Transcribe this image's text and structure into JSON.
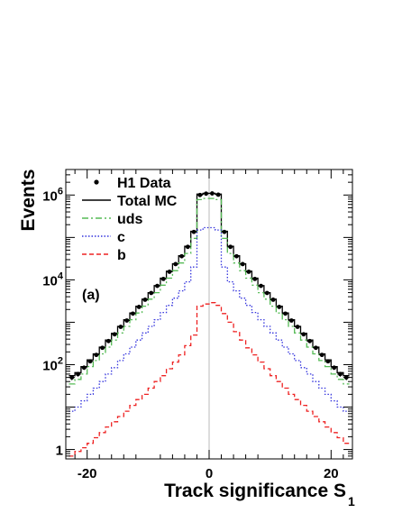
{
  "chart_data": {
    "type": "step-histogram",
    "xlabel": "Track significance S",
    "xlabel_subscript": "1",
    "ylabel": "Events",
    "yscale": "log",
    "xlim": [
      -23.5,
      23.5
    ],
    "ylim": [
      0.6,
      4000000
    ],
    "annotation": "(a)",
    "legend_placement": "top-left",
    "x_ticks": [
      {
        "value": -20,
        "label": "-20"
      },
      {
        "value": 0,
        "label": "0"
      },
      {
        "value": 20,
        "label": "20"
      }
    ],
    "y_ticks": [
      {
        "value": 1,
        "base": "1",
        "exp": ""
      },
      {
        "value": 100,
        "base": "10",
        "exp": "2"
      },
      {
        "value": 10000,
        "base": "10",
        "exp": "4"
      },
      {
        "value": 1000000,
        "base": "10",
        "exp": "6"
      }
    ],
    "bin_edges": [
      -23,
      -22,
      -21,
      -20,
      -19,
      -18,
      -17,
      -16,
      -15,
      -14,
      -13,
      -12,
      -11,
      -10,
      -9,
      -8,
      -7,
      -6,
      -5,
      -4,
      -3,
      -2,
      -1,
      0,
      1,
      2,
      3,
      4,
      5,
      6,
      7,
      8,
      9,
      10,
      11,
      12,
      13,
      14,
      15,
      16,
      17,
      18,
      19,
      20,
      21,
      22,
      23
    ],
    "series": [
      {
        "name": "Total MC",
        "style": "solid",
        "color": "#000000",
        "values": [
          55,
          65,
          90,
          130,
          180,
          260,
          380,
          550,
          800,
          1150,
          1650,
          2400,
          3500,
          5000,
          7300,
          11000,
          16000,
          24000,
          37000,
          62000,
          140000,
          1050000,
          1100000,
          1100000,
          1050000,
          140000,
          62000,
          37000,
          24000,
          16000,
          11000,
          7300,
          5000,
          3500,
          2400,
          1650,
          1150,
          800,
          550,
          380,
          260,
          180,
          130,
          90,
          65,
          55
        ]
      },
      {
        "name": "uds",
        "style": "dashdot",
        "color": "#55bb55",
        "values": [
          35,
          45,
          60,
          90,
          125,
          180,
          260,
          380,
          560,
          800,
          1150,
          1650,
          2400,
          3500,
          5000,
          7500,
          11000,
          16500,
          25000,
          42000,
          95000,
          780000,
          830000,
          830000,
          780000,
          95000,
          42000,
          25000,
          16500,
          11000,
          7500,
          5000,
          3500,
          2400,
          1650,
          1150,
          800,
          560,
          380,
          260,
          180,
          125,
          90,
          60,
          45,
          35
        ]
      },
      {
        "name": "c",
        "style": "dotted",
        "color": "#3333dd",
        "values": [
          8,
          10,
          14,
          20,
          28,
          40,
          60,
          85,
          125,
          180,
          260,
          380,
          560,
          800,
          1150,
          1700,
          2500,
          3700,
          5500,
          9000,
          20000,
          150000,
          170000,
          170000,
          150000,
          20000,
          9000,
          5500,
          3700,
          2500,
          1700,
          1150,
          800,
          560,
          380,
          260,
          180,
          125,
          85,
          60,
          40,
          28,
          20,
          14,
          10,
          8
        ]
      },
      {
        "name": "b",
        "style": "dashed",
        "color": "#ee2222",
        "values": [
          0.7,
          0.9,
          1.1,
          1.4,
          1.9,
          2.5,
          3.4,
          4.5,
          6,
          8,
          11,
          15,
          20,
          28,
          40,
          55,
          80,
          115,
          170,
          280,
          500,
          2400,
          2700,
          2900,
          2500,
          1600,
          1000,
          600,
          380,
          250,
          170,
          115,
          80,
          55,
          40,
          28,
          20,
          15,
          11,
          8,
          6,
          4.5,
          3.4,
          2.5,
          1.9,
          1.4
        ]
      },
      {
        "name": "H1 Data",
        "style": "points",
        "color": "#000000",
        "x": [
          -22.5,
          -21.5,
          -20.5,
          -19.5,
          -18.5,
          -17.5,
          -16.5,
          -15.5,
          -14.5,
          -13.5,
          -12.5,
          -11.5,
          -10.5,
          -9.5,
          -8.5,
          -7.5,
          -6.5,
          -5.5,
          -4.5,
          -3.5,
          -2.5,
          -1.5,
          -0.5,
          0.5,
          1.5,
          2.5,
          3.5,
          4.5,
          5.5,
          6.5,
          7.5,
          8.5,
          9.5,
          10.5,
          11.5,
          12.5,
          13.5,
          14.5,
          15.5,
          16.5,
          17.5,
          18.5,
          19.5,
          20.5,
          21.5,
          22.5
        ],
        "values": [
          50,
          60,
          85,
          120,
          170,
          250,
          360,
          520,
          780,
          1100,
          1600,
          2300,
          3400,
          4900,
          7200,
          10500,
          15500,
          23500,
          36000,
          60000,
          135000,
          1000000,
          1080000,
          1090000,
          1020000,
          135000,
          60000,
          36000,
          23500,
          15500,
          10500,
          7200,
          4900,
          3400,
          2300,
          1600,
          1100,
          780,
          520,
          360,
          250,
          170,
          120,
          85,
          60,
          50
        ]
      }
    ]
  }
}
